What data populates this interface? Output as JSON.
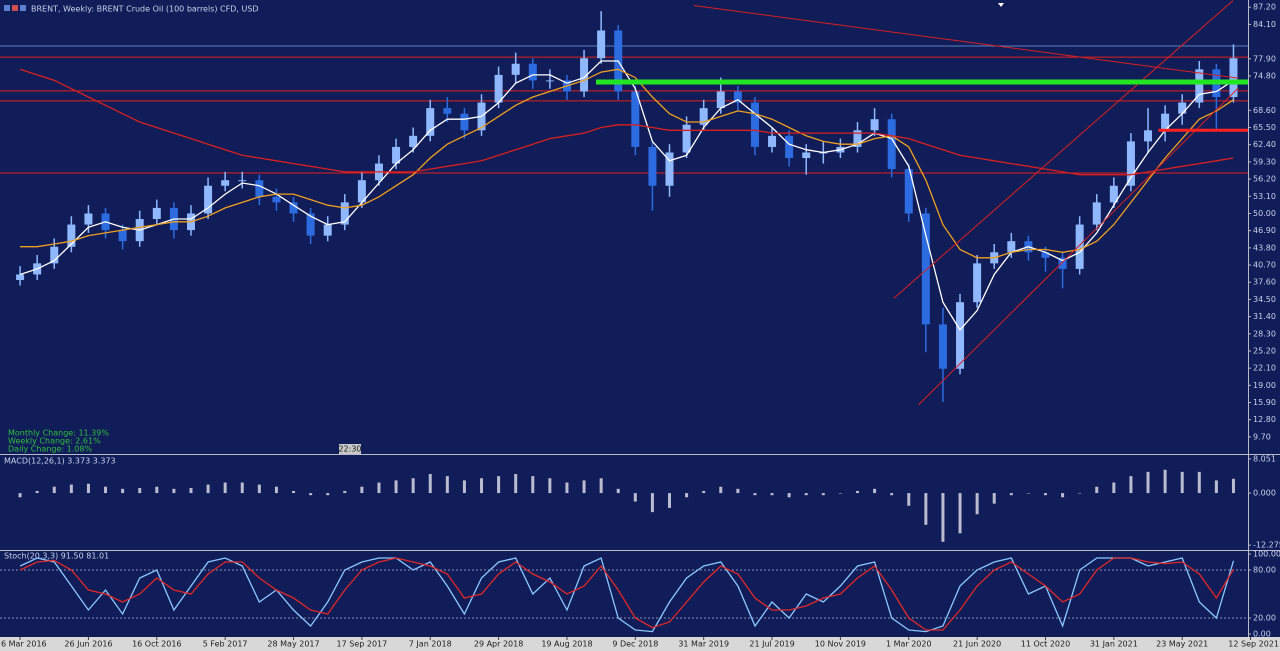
{
  "chart_data": [
    {
      "type": "candlestick",
      "title": "BRENT, Weekly:  BRENT Crude Oil (100 barrels) CFD, USD",
      "annotations": [
        "Monthly Change: 11.39%",
        "Weekly Change: 2.61%",
        "Daily Change: 1.08%"
      ],
      "time_label": "22:30",
      "up_color": "#8fb8ff",
      "down_color": "#2d6be0",
      "x": [
        0,
        4,
        8,
        12,
        16,
        20,
        24,
        28,
        32,
        36,
        40,
        44,
        48,
        52,
        56,
        60,
        64,
        68,
        72,
        76,
        80,
        84,
        88,
        92,
        96,
        100,
        104,
        108,
        112,
        116,
        120,
        124,
        128,
        132,
        136,
        140,
        144,
        148,
        152,
        156,
        160,
        164,
        168,
        172,
        176,
        180,
        184,
        188,
        192,
        196,
        200,
        204,
        208,
        212,
        216,
        220,
        224,
        228,
        232,
        236,
        240,
        244,
        248,
        252,
        256,
        260,
        264,
        268,
        272,
        276,
        280,
        284
      ],
      "candles": [
        [
          38,
          40.5,
          37,
          39
        ],
        [
          39,
          42.5,
          38,
          41
        ],
        [
          41,
          45.5,
          40,
          44
        ],
        [
          44,
          49.5,
          43,
          48
        ],
        [
          48,
          51.5,
          46.5,
          50
        ],
        [
          50,
          51,
          45.5,
          47
        ],
        [
          47,
          48,
          43.5,
          45
        ],
        [
          45,
          50.5,
          44,
          49
        ],
        [
          49,
          52.5,
          48,
          51
        ],
        [
          51,
          52,
          45.5,
          47
        ],
        [
          47,
          51.5,
          46,
          50
        ],
        [
          50,
          56.5,
          49,
          55
        ],
        [
          55,
          57.5,
          54,
          56
        ],
        [
          56,
          57.5,
          54.5,
          56
        ],
        [
          56,
          57,
          51.5,
          53
        ],
        [
          53,
          54.5,
          50.5,
          52
        ],
        [
          52,
          53,
          48.5,
          50
        ],
        [
          50,
          51,
          44.5,
          46
        ],
        [
          46,
          49.5,
          45,
          48
        ],
        [
          48,
          53.5,
          47,
          52
        ],
        [
          52,
          57.5,
          51,
          56
        ],
        [
          56,
          60.5,
          55,
          59
        ],
        [
          59,
          63.5,
          58,
          62
        ],
        [
          62,
          65.5,
          61,
          64
        ],
        [
          64,
          70.5,
          63,
          69
        ],
        [
          69,
          71,
          66.5,
          68
        ],
        [
          68,
          69,
          63.5,
          65
        ],
        [
          65,
          71.5,
          64,
          70
        ],
        [
          70,
          76.5,
          69,
          75
        ],
        [
          75,
          79,
          73.5,
          77
        ],
        [
          77,
          78,
          72.5,
          74
        ],
        [
          74,
          76,
          72.5,
          74
        ],
        [
          74,
          75,
          70.5,
          72
        ],
        [
          72,
          79.5,
          71,
          78
        ],
        [
          78,
          86.5,
          77,
          83
        ],
        [
          83,
          84,
          70.5,
          72
        ],
        [
          72,
          73,
          60.5,
          62
        ],
        [
          62,
          63,
          50.5,
          55
        ],
        [
          55,
          62.5,
          53,
          61
        ],
        [
          61,
          67.5,
          60,
          66
        ],
        [
          66,
          70.5,
          65,
          69
        ],
        [
          69,
          74.5,
          68,
          72
        ],
        [
          72,
          73,
          68.5,
          70
        ],
        [
          70,
          71,
          60.5,
          62
        ],
        [
          62,
          65.5,
          61,
          64
        ],
        [
          64,
          65,
          58.5,
          60
        ],
        [
          60,
          62.5,
          57,
          61
        ],
        [
          61,
          63,
          59,
          61
        ],
        [
          61,
          63.5,
          60,
          62
        ],
        [
          62,
          66.5,
          61,
          65
        ],
        [
          65,
          69,
          64,
          67
        ],
        [
          67,
          68,
          56.5,
          58
        ],
        [
          58,
          59,
          48.5,
          50
        ],
        [
          50,
          51,
          25,
          30
        ],
        [
          30,
          33,
          16,
          22
        ],
        [
          22,
          35.5,
          21,
          34
        ],
        [
          34,
          42.5,
          33,
          41
        ],
        [
          41,
          44.5,
          40,
          43
        ],
        [
          43,
          46.5,
          42,
          45
        ],
        [
          45,
          46,
          41.5,
          43
        ],
        [
          43,
          44,
          39.5,
          42
        ],
        [
          42,
          43,
          36.5,
          40
        ],
        [
          40,
          49.5,
          39,
          48
        ],
        [
          48,
          53.5,
          47,
          52
        ],
        [
          52,
          56.5,
          51,
          55
        ],
        [
          55,
          64.5,
          54,
          63
        ],
        [
          63,
          69,
          61,
          65
        ],
        [
          65,
          69.5,
          63,
          68
        ],
        [
          68,
          71.5,
          66,
          70
        ],
        [
          70,
          77.5,
          69,
          76
        ],
        [
          76,
          77,
          65,
          71
        ],
        [
          71,
          80.5,
          70,
          78
        ]
      ],
      "series": [
        {
          "color": "#ffffff",
          "values": [
            39,
            40,
            41.5,
            44.5,
            47.5,
            48.5,
            47.5,
            47,
            48,
            49,
            49,
            51,
            53.5,
            55.5,
            55,
            53.5,
            51.5,
            49.5,
            48,
            48.5,
            52,
            55.5,
            59,
            61.5,
            65,
            67,
            67,
            67.5,
            70,
            73.5,
            75,
            75,
            73.5,
            74.5,
            77.5,
            77.5,
            72.5,
            63,
            59.5,
            60.5,
            65.5,
            69,
            70.5,
            68,
            65.5,
            62.5,
            61.5,
            61,
            61.5,
            62.5,
            64.5,
            63.5,
            58.5,
            46,
            34,
            29,
            32.5,
            39,
            43,
            44,
            43,
            41.5,
            43,
            46.5,
            51.5,
            56.5,
            61,
            65,
            68,
            71.5,
            72,
            74
          ]
        },
        {
          "color": "#f0a020",
          "values": [
            44,
            44,
            44.5,
            45,
            46,
            46.5,
            47,
            47.5,
            48,
            48.5,
            48.5,
            49.5,
            51,
            52,
            53,
            53.5,
            53.5,
            52.5,
            51.5,
            51,
            51.5,
            53,
            55,
            57,
            60,
            62.5,
            64,
            65.5,
            67.5,
            69.5,
            71,
            72,
            73,
            74,
            75.5,
            76,
            74.5,
            71,
            68,
            66.5,
            66.5,
            67.5,
            68.5,
            68,
            67,
            65.5,
            64,
            63,
            62.5,
            62.5,
            63.5,
            64,
            62,
            56,
            48,
            43.5,
            42,
            42,
            43,
            43.5,
            43.5,
            43,
            43.5,
            45,
            48,
            52,
            56,
            60,
            63.5,
            67,
            68.5,
            70.5
          ]
        },
        {
          "color": "#d82020",
          "values": [
            76,
            75,
            74,
            72.5,
            71,
            69.5,
            68,
            66.5,
            65.5,
            64.5,
            63.5,
            62.5,
            61.5,
            60.5,
            60,
            59.5,
            59,
            58.5,
            58,
            57.5,
            57.5,
            57.5,
            57.5,
            57.5,
            58,
            58.5,
            59,
            59.5,
            60.5,
            61.5,
            62.5,
            63.5,
            64,
            64.5,
            65.5,
            66,
            66,
            65.5,
            65,
            65,
            65,
            65,
            65,
            65,
            64.5,
            64.5,
            64.5,
            64.5,
            64.5,
            64.5,
            64.5,
            64,
            63.5,
            62.5,
            61.5,
            60.5,
            60,
            59.5,
            59,
            58.5,
            58,
            57.5,
            57,
            57,
            57,
            57,
            57.5,
            58,
            58.5,
            59,
            59.5,
            60
          ]
        }
      ],
      "levels": [
        {
          "value": 80.2,
          "color": "#5a7fc0"
        },
        {
          "value": 78.2,
          "color": "#e0201c"
        },
        {
          "value": 72.1,
          "color": "#e0201c"
        },
        {
          "value": 70.3,
          "color": "#e0201c"
        },
        {
          "value": 57.3,
          "color": "#e0201c"
        }
      ],
      "lines": [
        {
          "color": "#d82020",
          "width": 1,
          "points": [
            157.7,
            87.5,
            285.1,
            74.4
          ]
        },
        {
          "color": "#d82020",
          "width": 1,
          "points": [
            210.3,
            15.5,
            285.1,
            72.6
          ]
        },
        {
          "color": "#d82020",
          "width": 1,
          "points": [
            204.5,
            34.7,
            283.9,
            88.4
          ]
        },
        {
          "color": "#22e622",
          "width": 5,
          "points": [
            134.8,
            73.7,
            287.4,
            73.7
          ]
        },
        {
          "color": "#ff2020",
          "width": 3,
          "points": [
            266.4,
            65.0,
            287.4,
            65.0
          ]
        }
      ],
      "xlim": [
        -4.7,
        287.4
      ],
      "xticks": [
        {
          "value": 0,
          "label": "6 Mar 2016"
        },
        {
          "value": 16,
          "label": "26 Jun 2016"
        },
        {
          "value": 32,
          "label": "16 Oct 2016"
        },
        {
          "value": 48,
          "label": "5 Feb 2017"
        },
        {
          "value": 64,
          "label": "28 May 2017"
        },
        {
          "value": 80,
          "label": "17 Sep 2017"
        },
        {
          "value": 96,
          "label": "7 Jan 2018"
        },
        {
          "value": 112,
          "label": "29 Apr 2018"
        },
        {
          "value": 128,
          "label": "19 Aug 2018"
        },
        {
          "value": 144,
          "label": "9 Dec 2018"
        },
        {
          "value": 160,
          "label": "31 Mar 2019"
        },
        {
          "value": 176,
          "label": "21 Jul 2019"
        },
        {
          "value": 192,
          "label": "10 Nov 2019"
        },
        {
          "value": 208,
          "label": "1 Mar 2020"
        },
        {
          "value": 224,
          "label": "21 Jun 2020"
        },
        {
          "value": 240,
          "label": "11 Oct 2020"
        },
        {
          "value": 256,
          "label": "31 Jan 2021"
        },
        {
          "value": 272,
          "label": "23 May 2021"
        },
        {
          "value": 288,
          "label": "12 Sep 2021"
        }
      ],
      "ylim": [
        6.8,
        88.5
      ],
      "yticks": [
        {
          "value": 87.2,
          "label": "87.20"
        },
        {
          "value": 84.1,
          "label": "84.10"
        },
        {
          "value": 77.9,
          "label": "77.90"
        },
        {
          "value": 74.8,
          "label": "74.80"
        },
        {
          "value": 68.6,
          "label": "68.60"
        },
        {
          "value": 65.5,
          "label": "65.50"
        },
        {
          "value": 62.4,
          "label": "62.40"
        },
        {
          "value": 59.3,
          "label": "59.30"
        },
        {
          "value": 56.2,
          "label": "56.20"
        },
        {
          "value": 53.1,
          "label": "53.10"
        },
        {
          "value": 50,
          "label": "50.00"
        },
        {
          "value": 46.9,
          "label": "46.90"
        },
        {
          "value": 43.8,
          "label": "43.80"
        },
        {
          "value": 40.7,
          "label": "40.70"
        },
        {
          "value": 37.6,
          "label": "37.60"
        },
        {
          "value": 34.5,
          "label": "34.50"
        },
        {
          "value": 31.4,
          "label": "31.40"
        },
        {
          "value": 28.3,
          "label": "28.30"
        },
        {
          "value": 25.2,
          "label": "25.20"
        },
        {
          "value": 22.1,
          "label": "22.10"
        },
        {
          "value": 19,
          "label": "19.00"
        },
        {
          "value": 15.9,
          "label": "15.90"
        },
        {
          "value": 12.8,
          "label": "12.80"
        },
        {
          "value": 9.7,
          "label": "9.70"
        }
      ]
    },
    {
      "type": "bar",
      "title": "MACD(12,26,1) 3.373 3.373",
      "color": "#d8d8e8",
      "values": [
        -1,
        0.5,
        1.5,
        2,
        2.2,
        1.5,
        1,
        1.2,
        1.5,
        1,
        1.2,
        2,
        2.5,
        2.5,
        2,
        1.5,
        0.5,
        -0.5,
        -0.5,
        0.5,
        1.5,
        2.5,
        3,
        3.5,
        4.5,
        4,
        3,
        3.5,
        4,
        4.5,
        4,
        3.5,
        2.5,
        3,
        3.5,
        1,
        -2,
        -4.5,
        -3.5,
        -1,
        0.5,
        1.5,
        1,
        -0.5,
        -0.5,
        -1,
        -0.5,
        -0.5,
        0,
        0.5,
        1,
        -0.5,
        -3,
        -7.5,
        -11.5,
        -9.5,
        -5,
        -2.5,
        -0.5,
        0,
        -0.5,
        -1,
        0,
        1.5,
        2.5,
        4,
        5,
        5.5,
        5,
        5,
        3,
        3.373
      ],
      "ylim": [
        -13.2,
        8.75
      ],
      "yticks": [
        8.051,
        {
          "value": 0,
          "label": "0.000"
        },
        -12.275
      ]
    },
    {
      "type": "line",
      "title": "Stoch(20,3,3) 91.50 81.01",
      "series": [
        {
          "color": "#8cc8ff",
          "values": [
            85,
            95,
            90,
            60,
            30,
            55,
            25,
            70,
            80,
            30,
            60,
            90,
            95,
            85,
            40,
            55,
            30,
            10,
            40,
            80,
            90,
            95,
            95,
            80,
            90,
            60,
            25,
            70,
            90,
            95,
            50,
            70,
            30,
            85,
            95,
            20,
            5,
            3,
            40,
            70,
            85,
            90,
            60,
            10,
            40,
            20,
            50,
            40,
            60,
            85,
            90,
            20,
            5,
            3,
            10,
            60,
            80,
            90,
            95,
            50,
            60,
            10,
            80,
            95,
            95,
            95,
            85,
            90,
            95,
            40,
            20,
            91.5
          ]
        },
        {
          "color": "#e02828",
          "values": [
            80,
            90,
            92,
            80,
            55,
            50,
            40,
            50,
            70,
            55,
            50,
            75,
            90,
            90,
            70,
            55,
            45,
            30,
            25,
            55,
            80,
            90,
            95,
            90,
            85,
            75,
            45,
            50,
            75,
            90,
            75,
            65,
            50,
            60,
            85,
            55,
            20,
            8,
            15,
            40,
            65,
            85,
            75,
            45,
            30,
            30,
            35,
            45,
            50,
            70,
            85,
            55,
            20,
            5,
            5,
            30,
            60,
            80,
            90,
            75,
            60,
            40,
            50,
            80,
            95,
            95,
            90,
            88,
            90,
            75,
            45,
            81.01
          ]
        }
      ],
      "ylim": [
        -2.5,
        102.5
      ],
      "yticks": [
        {
          "value": 100,
          "label": "100.00"
        },
        {
          "value": 80,
          "label": "80.00"
        },
        {
          "value": 20,
          "label": "20.00"
        },
        {
          "value": 0,
          "label": "0.00"
        }
      ],
      "grid": [
        80,
        20
      ]
    }
  ]
}
